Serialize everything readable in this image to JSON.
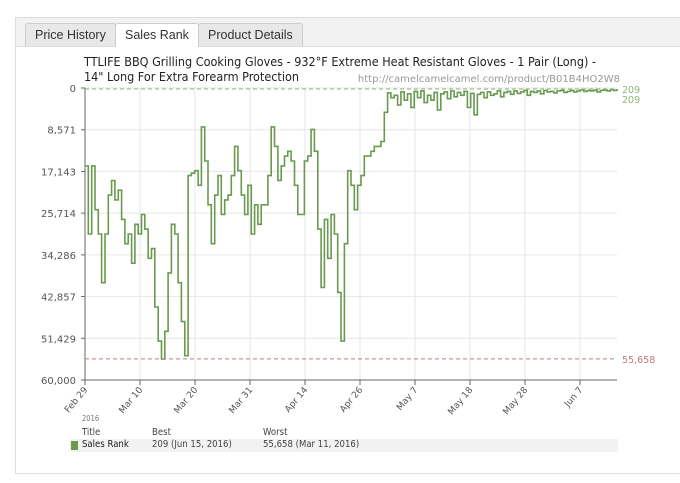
{
  "tabs": [
    {
      "label": "Price History"
    },
    {
      "label": "Sales Rank"
    },
    {
      "label": "Product Details"
    }
  ],
  "active_tab": "Sales Rank",
  "chart_data": {
    "type": "line",
    "title": "TTLIFE BBQ Grilling Cooking Gloves - 932°F Extreme Heat Resistant Gloves - 1 Pair (Long) - 14\" Long For Extra Forearm Protection",
    "subtitle": "http://camelcamelcamel.com/product/B01B4HO2W8",
    "y_reversed": true,
    "ylim": [
      0,
      60000
    ],
    "y_ticks": [
      "0",
      "8,571",
      "17,143",
      "25,714",
      "34,286",
      "42,857",
      "51,429",
      "60,000"
    ],
    "x_ticks": [
      "Feb 29",
      "Mar 10",
      "Mar 20",
      "Mar 31",
      "Apr 14",
      "Apr 26",
      "May 7",
      "May 18",
      "May 28",
      "Jun 7"
    ],
    "x_year": "2016",
    "grid": true,
    "series": [
      {
        "name": "Sales Rank",
        "color": "#6a9a50",
        "values": [
          16000,
          30000,
          16000,
          25000,
          30000,
          40000,
          30000,
          22000,
          19000,
          23000,
          21000,
          27000,
          32000,
          30000,
          36000,
          28000,
          30000,
          26000,
          29000,
          35000,
          33000,
          45000,
          52000,
          55658,
          50000,
          38000,
          28000,
          30000,
          40000,
          48000,
          55000,
          18000,
          17500,
          17000,
          20000,
          8000,
          15000,
          24000,
          32000,
          22000,
          18000,
          26000,
          23000,
          22000,
          18000,
          12000,
          17000,
          22000,
          26000,
          20000,
          30000,
          24000,
          28000,
          24000,
          24000,
          18000,
          8000,
          12000,
          19000,
          16000,
          14000,
          13000,
          15000,
          20000,
          26000,
          26000,
          15000,
          14000,
          8500,
          13000,
          29000,
          41000,
          27000,
          35000,
          26000,
          30000,
          42000,
          52000,
          32000,
          17000,
          20000,
          25000,
          20000,
          18000,
          14000,
          14000,
          13000,
          12000,
          12000,
          11000,
          5000,
          1000,
          2000,
          1500,
          3500,
          800,
          2500,
          1200,
          4000,
          700,
          2000,
          600,
          3000,
          1500,
          2500,
          900,
          4500,
          1200,
          800,
          2200,
          600,
          1800,
          900,
          1500,
          700,
          4000,
          1100,
          5500,
          1300,
          900,
          2000,
          800,
          1500,
          1200,
          600,
          1800,
          900,
          700,
          1300,
          600,
          1100,
          800,
          500,
          1500,
          700,
          900,
          600,
          1200,
          500,
          800,
          700,
          1000,
          600,
          500,
          900,
          700,
          500,
          800,
          600,
          400,
          700,
          500,
          600,
          450,
          800,
          500,
          400,
          600,
          350,
          500,
          209
        ]
      },
      {
        "name": "Worst",
        "value": 55658,
        "label": "55,658",
        "color": "#c47a7a"
      },
      {
        "name": "Best",
        "value": 209,
        "label": "209",
        "color": "#8fb878"
      }
    ]
  },
  "legend": {
    "headers": [
      "Title",
      "Best",
      "Worst"
    ],
    "rows": [
      {
        "title": "Sales Rank",
        "best": "209 (Jun 15, 2016)",
        "worst": "55,658 (Mar 11, 2016)",
        "color": "#6a9a50"
      }
    ]
  }
}
